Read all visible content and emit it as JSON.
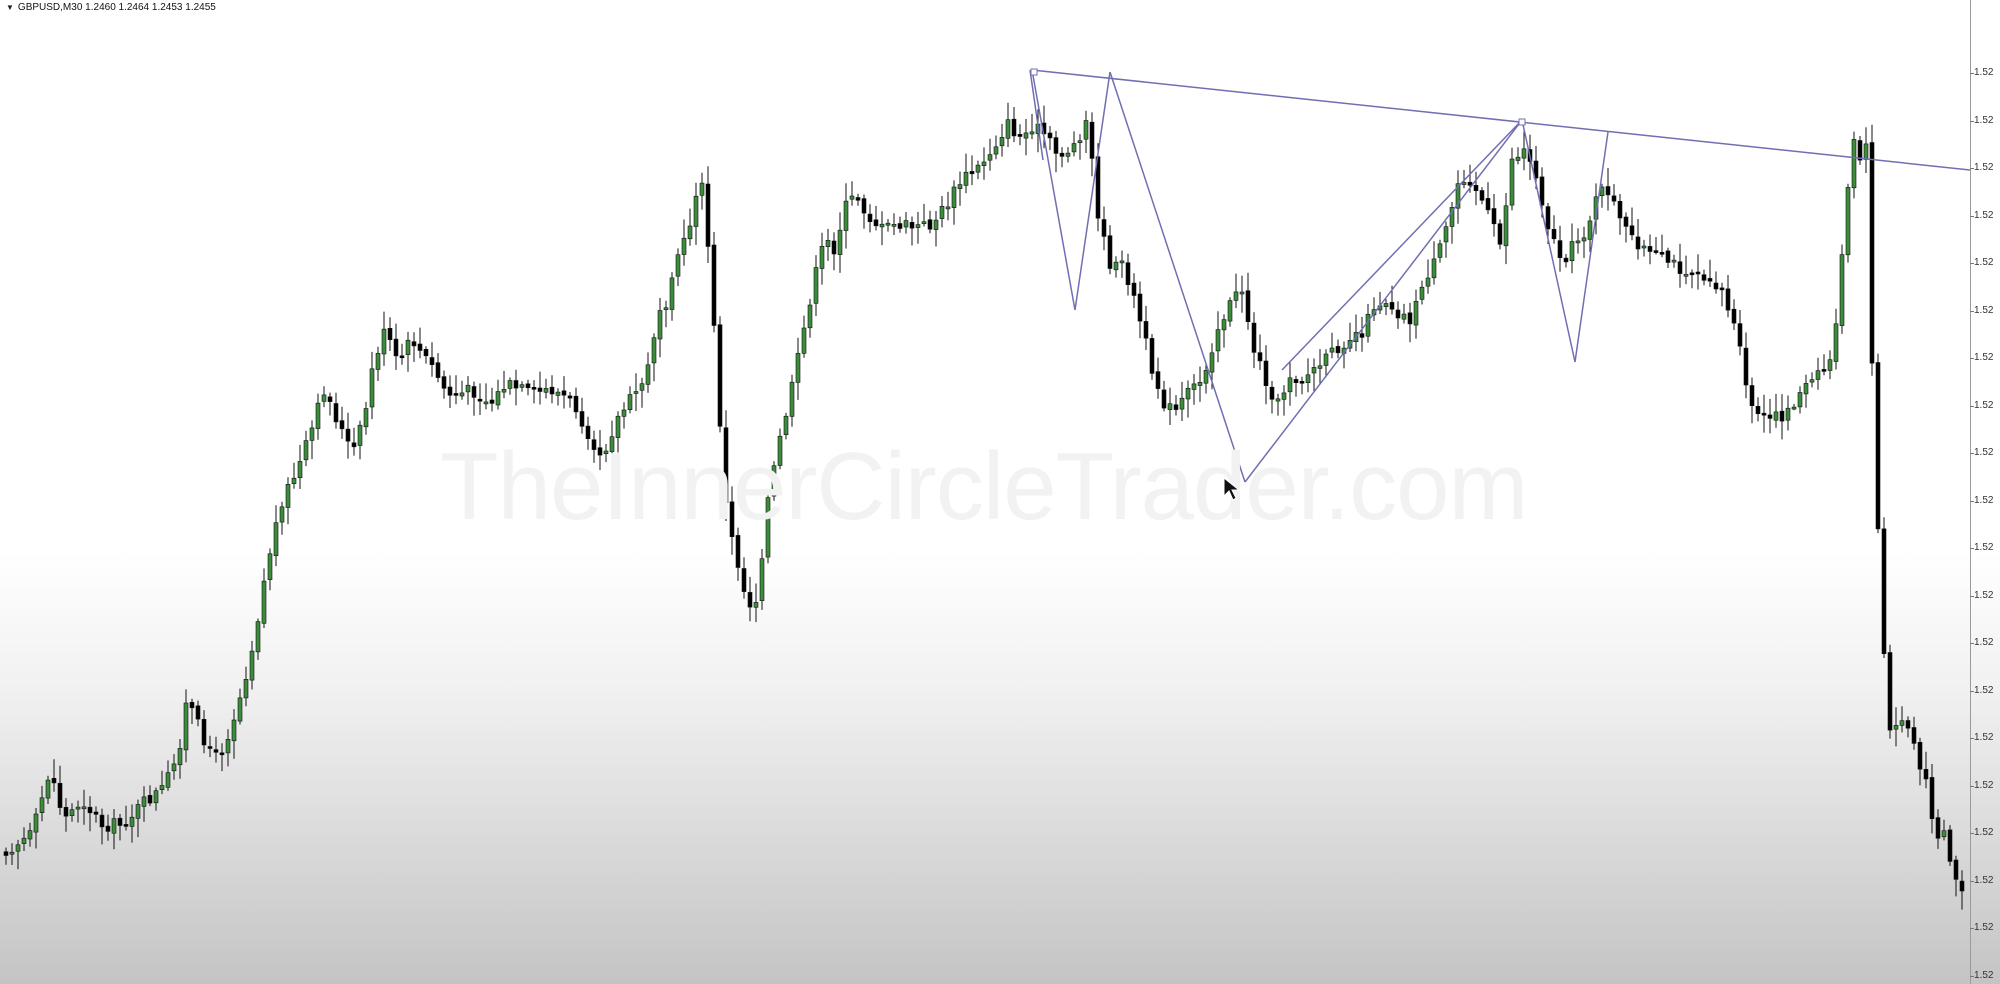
{
  "window": {
    "dropdown_icon": "triangle-down-icon",
    "title": "GBPUSD,M30  1.2460 1.2464 1.2453 1.2455"
  },
  "watermark": "TheInnerCircleTrader.com",
  "price_axis": {
    "labels": [
      "1.52",
      "1.52",
      "1.52",
      "1.52",
      "1.52",
      "1.52",
      "1.52",
      "1.52",
      "1.52",
      "1.52",
      "1.52",
      "1.52",
      "1.52",
      "1.52",
      "1.52",
      "1.52",
      "1.52",
      "1.52",
      "1.52",
      "1.52"
    ]
  },
  "colors": {
    "bull_body": "#3b8c3b",
    "bear_body": "#000000",
    "wick": "#111111",
    "trendline": "#6f6fb2",
    "background": "#ffffff"
  },
  "cursor_icon": "mouse-pointer-icon"
}
